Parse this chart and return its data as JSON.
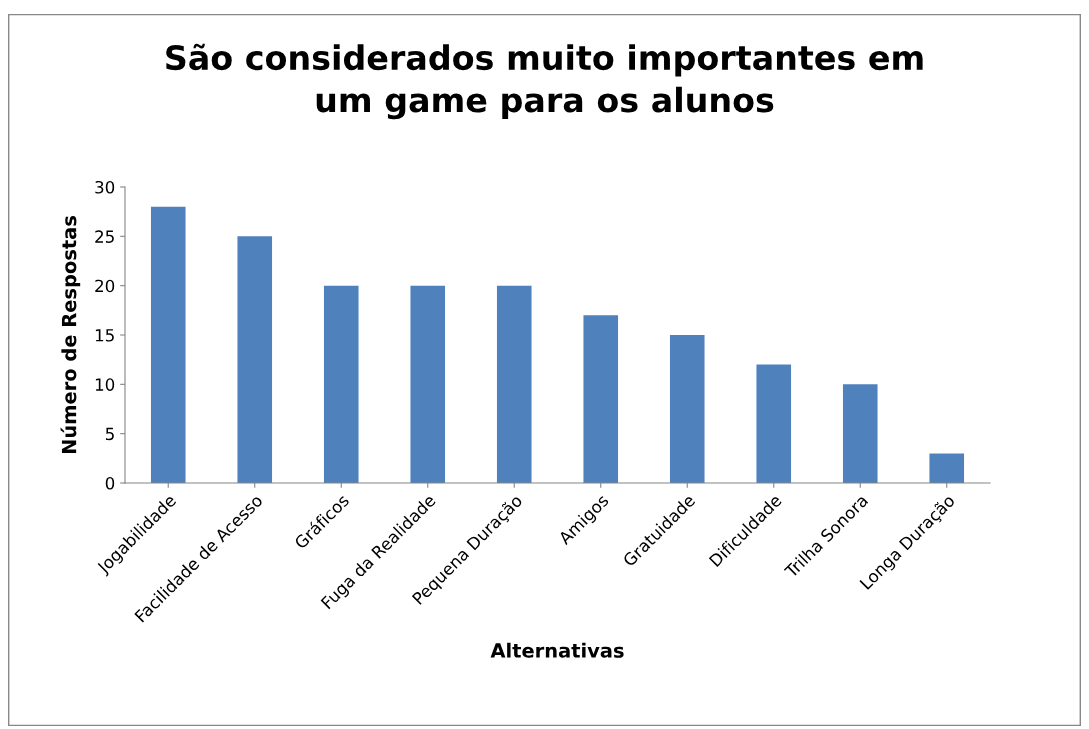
{
  "chart_data": {
    "type": "bar",
    "title": "São considerados muito importantes em\num game para os alunos",
    "xlabel": "Alternativas",
    "ylabel": "Número de Respostas",
    "categories": [
      "Jogabilidade",
      "Facilidade de Acesso",
      "Gráficos",
      "Fuga da Realidade",
      "Pequena Duração",
      "Amigos",
      "Gratuidade",
      "Dificuldade",
      "Trilha Sonora",
      "Longa Duração"
    ],
    "values": [
      28,
      25,
      20,
      20,
      20,
      17,
      15,
      12,
      10,
      3
    ],
    "color": "#4f81bd",
    "ylim": [
      0,
      30
    ],
    "yticks": [
      0,
      5,
      10,
      15,
      20,
      25,
      30
    ],
    "grid": false,
    "legend": false
  }
}
